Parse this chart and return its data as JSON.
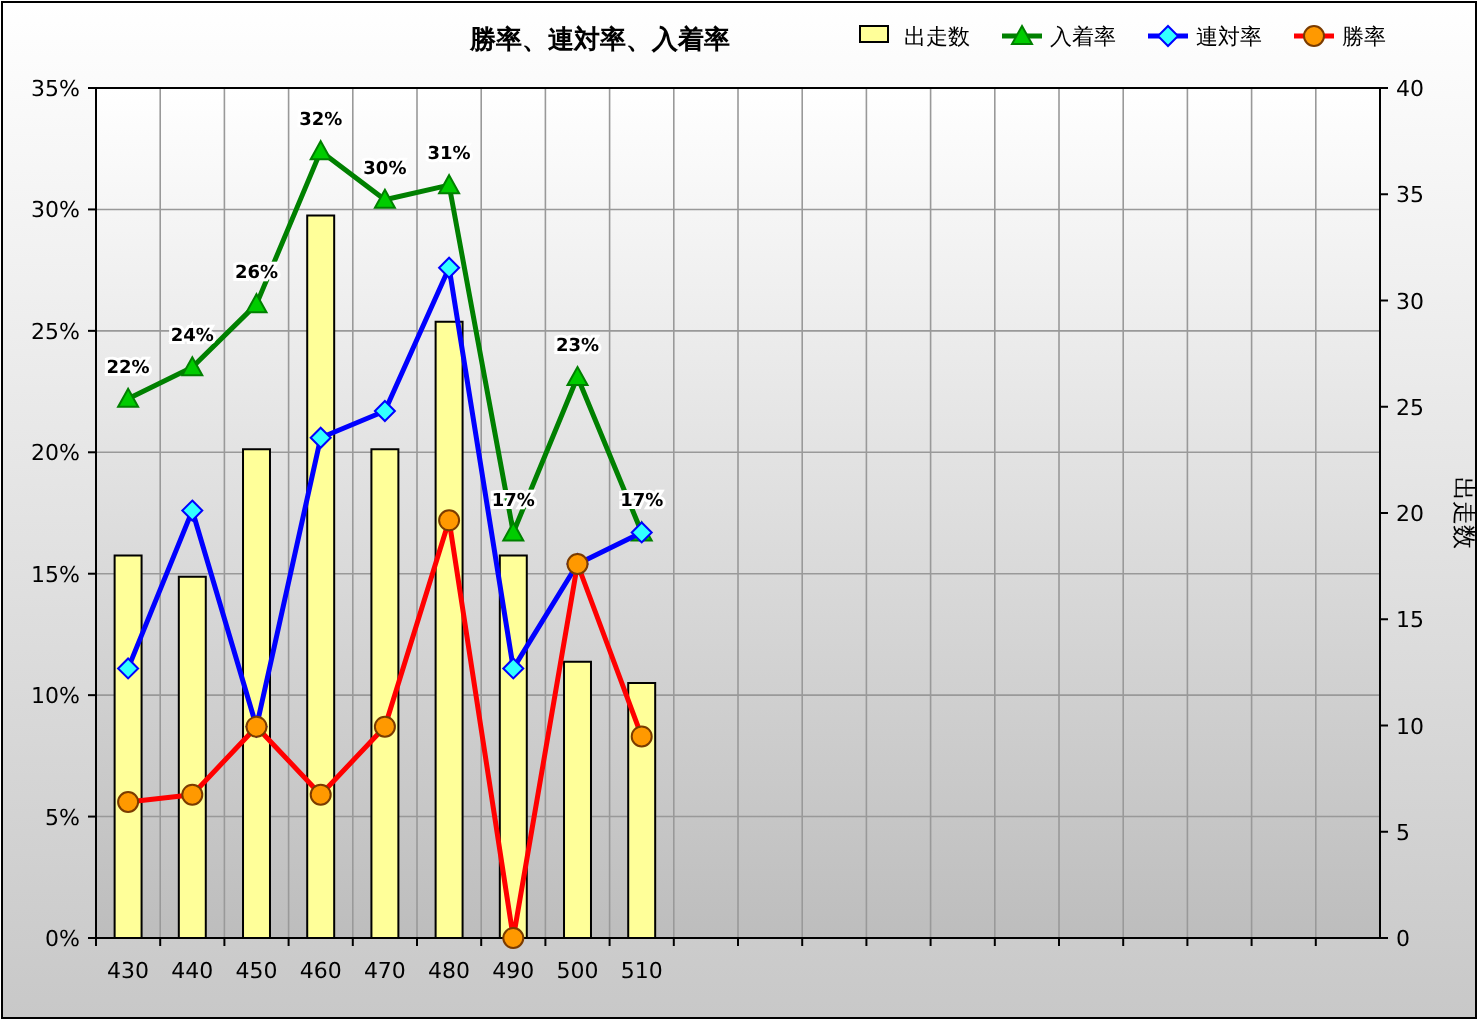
{
  "chart_data": {
    "type": "bar",
    "title": "勝率、連対率、入着率",
    "y2label": "出走数",
    "categories": [
      "430",
      "440",
      "450",
      "460",
      "470",
      "480",
      "490",
      "500",
      "510",
      null,
      null,
      null,
      null,
      null,
      null,
      null,
      null,
      null,
      null,
      null
    ],
    "series": [
      {
        "name": "出走数",
        "axis": "y2",
        "color": "#ffff99",
        "values": [
          18,
          17,
          23,
          34,
          23,
          29,
          18,
          13,
          12,
          null,
          null,
          null,
          null,
          null,
          null,
          null,
          null,
          null,
          null,
          null
        ]
      },
      {
        "name": "入着率",
        "type": "line",
        "axis": "y",
        "color": "#008000",
        "marker": "triangle",
        "values": [
          22.2,
          23.5,
          26.1,
          32.4,
          30.4,
          31.0,
          16.7,
          23.1,
          16.7,
          null,
          null,
          null,
          null,
          null,
          null,
          null,
          null,
          null,
          null,
          null
        ],
        "value_labels": [
          "22%",
          "24%",
          "26%",
          "32%",
          "30%",
          "31%",
          "17%",
          "23%",
          "17%",
          null,
          null,
          null,
          null,
          null,
          null,
          null,
          null,
          null,
          null,
          null
        ]
      },
      {
        "name": "連対率",
        "type": "line",
        "axis": "y",
        "color": "#0000ff",
        "marker": "diamond",
        "values": [
          11.1,
          17.6,
          8.7,
          20.6,
          21.7,
          27.6,
          11.1,
          15.4,
          16.7,
          null,
          null,
          null,
          null,
          null,
          null,
          null,
          null,
          null,
          null,
          null
        ]
      },
      {
        "name": "勝率",
        "type": "line",
        "axis": "y",
        "color": "#ff0000",
        "marker": "circle",
        "values": [
          5.6,
          5.9,
          8.7,
          5.9,
          8.7,
          17.2,
          0,
          15.4,
          8.3,
          null,
          null,
          null,
          null,
          null,
          null,
          null,
          null,
          null,
          null,
          null
        ]
      }
    ],
    "ylim": [
      0,
      35
    ],
    "yticks": [
      {
        "value": 0,
        "label": "0%"
      },
      {
        "value": 5,
        "label": "5%"
      },
      {
        "value": 10,
        "label": "10%"
      },
      {
        "value": 15,
        "label": "15%"
      },
      {
        "value": 20,
        "label": "20%"
      },
      {
        "value": 25,
        "label": "25%"
      },
      {
        "value": 30,
        "label": "30%"
      },
      {
        "value": 35,
        "label": "35%"
      }
    ],
    "y2lim": [
      0,
      40
    ],
    "y2ticks": [
      0,
      5,
      10,
      15,
      20,
      25,
      30,
      35,
      40
    ],
    "grid": true,
    "legend": "top right"
  }
}
